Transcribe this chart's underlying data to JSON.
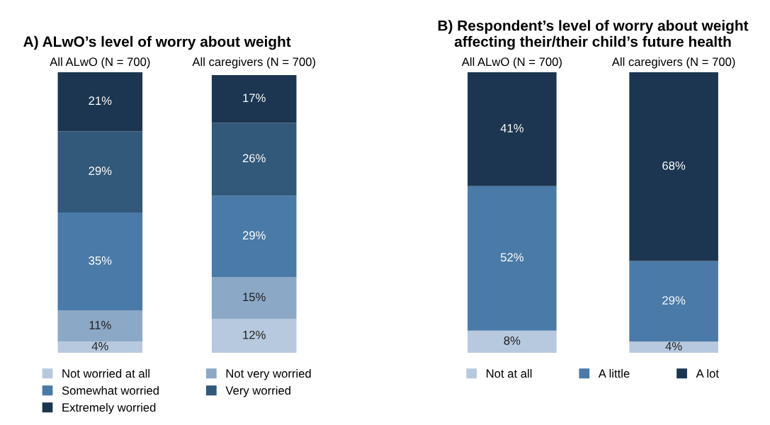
{
  "chart_data": [
    {
      "type": "bar",
      "stacked": true,
      "title": "A) ALwO’s level of worry about weight",
      "categories": [
        "All ALwO (N = 700)",
        "All caregivers (N = 700)"
      ],
      "legend": "bottom",
      "tick_labels": "x",
      "series": [
        {
          "name": "Not worried at all",
          "color": "#b7c9de",
          "values": [
            4,
            12
          ],
          "value_labels": [
            "4%",
            "12%"
          ]
        },
        {
          "name": "Not very worried",
          "color": "#8ba8c7",
          "values": [
            11,
            15
          ],
          "value_labels": [
            "11%",
            "15%"
          ]
        },
        {
          "name": "Somewhat worried",
          "color": "#4a7aa8",
          "values": [
            35,
            29
          ],
          "value_labels": [
            "35%",
            "29%"
          ]
        },
        {
          "name": "Very worried",
          "color": "#32587a",
          "values": [
            29,
            26
          ],
          "value_labels": [
            "29%",
            "26%"
          ]
        },
        {
          "name": "Extremely worried",
          "color": "#1c3651",
          "values": [
            21,
            17
          ],
          "value_labels": [
            "21%",
            "17%"
          ]
        }
      ]
    },
    {
      "type": "bar",
      "stacked": true,
      "title": "B) Respondent’s level of worry about weight\naffecting their/their child’s future health",
      "categories": [
        "All ALwO (N = 700)",
        "All caregivers (N = 700)"
      ],
      "legend": "bottom",
      "tick_labels": "x",
      "series": [
        {
          "name": "Not at all",
          "color": "#b7c9de",
          "values": [
            8,
            4
          ],
          "value_labels": [
            "8%",
            "4%"
          ]
        },
        {
          "name": "A little",
          "color": "#4a7aa8",
          "values": [
            52,
            29
          ],
          "value_labels": [
            "52%",
            "29%"
          ]
        },
        {
          "name": "A lot",
          "color": "#1c3651",
          "values": [
            41,
            68
          ],
          "value_labels": [
            "41%",
            "68%"
          ]
        }
      ]
    }
  ]
}
